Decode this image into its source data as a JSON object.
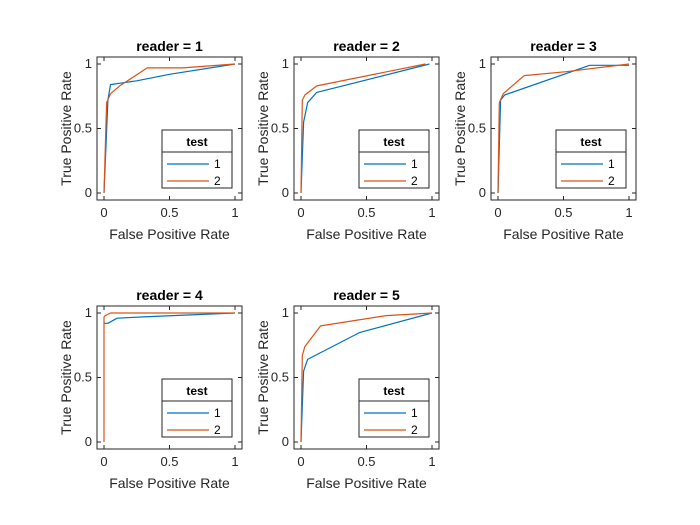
{
  "chart_data": [
    {
      "type": "line",
      "title": "reader = 1",
      "xlabel": "False Positive Rate",
      "ylabel": "True Positive Rate",
      "xlim": [
        0,
        1
      ],
      "ylim": [
        0,
        1
      ],
      "xticks": [
        "0",
        "0.5",
        "1"
      ],
      "yticks": [
        "0",
        "0.5",
        "1"
      ],
      "legend": {
        "title": "test",
        "placement": "bottom-right"
      },
      "series": [
        {
          "name": "1",
          "color": "#0072BD",
          "x": [
            0,
            0.03,
            0.05,
            0.25,
            0.5,
            1
          ],
          "y": [
            0,
            0.72,
            0.84,
            0.87,
            0.92,
            1
          ]
        },
        {
          "name": "2",
          "color": "#D95319",
          "x": [
            0,
            0.02,
            0.05,
            0.12,
            0.33,
            0.6,
            1
          ],
          "y": [
            0,
            0.7,
            0.77,
            0.83,
            0.97,
            0.97,
            1
          ]
        }
      ]
    },
    {
      "type": "line",
      "title": "reader = 2",
      "xlabel": "False Positive Rate",
      "ylabel": "True Positive Rate",
      "xlim": [
        0,
        1
      ],
      "ylim": [
        0,
        1
      ],
      "xticks": [
        "0",
        "0.5",
        "1"
      ],
      "yticks": [
        "0",
        "0.5",
        "1"
      ],
      "legend": {
        "title": "test",
        "placement": "bottom-right"
      },
      "series": [
        {
          "name": "1",
          "color": "#0072BD",
          "x": [
            0,
            0.02,
            0.05,
            0.12,
            0.98
          ],
          "y": [
            0,
            0.55,
            0.7,
            0.78,
            1
          ]
        },
        {
          "name": "2",
          "color": "#D95319",
          "x": [
            0,
            0.01,
            0.03,
            0.12,
            0.95
          ],
          "y": [
            0,
            0.72,
            0.76,
            0.83,
            1
          ]
        }
      ]
    },
    {
      "type": "line",
      "title": "reader = 3",
      "xlabel": "False Positive Rate",
      "ylabel": "True Positive Rate",
      "xlim": [
        0,
        1
      ],
      "ylim": [
        0,
        1
      ],
      "xticks": [
        "0",
        "0.5",
        "1"
      ],
      "yticks": [
        "0",
        "0.5",
        "1"
      ],
      "legend": {
        "title": "test",
        "placement": "bottom-right"
      },
      "series": [
        {
          "name": "1",
          "color": "#0072BD",
          "x": [
            0,
            0.02,
            0.05,
            0.7,
            1
          ],
          "y": [
            0,
            0.72,
            0.76,
            0.99,
            0.99
          ]
        },
        {
          "name": "2",
          "color": "#D95319",
          "x": [
            0,
            0.01,
            0.04,
            0.2,
            0.52,
            1
          ],
          "y": [
            0,
            0.7,
            0.77,
            0.91,
            0.94,
            1
          ]
        }
      ]
    },
    {
      "type": "line",
      "title": "reader = 4",
      "xlabel": "False Positive Rate",
      "ylabel": "True Positive Rate",
      "xlim": [
        0,
        1
      ],
      "ylim": [
        0,
        1
      ],
      "xticks": [
        "0",
        "0.5",
        "1"
      ],
      "yticks": [
        "0",
        "0.5",
        "1"
      ],
      "legend": {
        "title": "test",
        "placement": "bottom-right"
      },
      "series": [
        {
          "name": "1",
          "color": "#0072BD",
          "x": [
            0,
            0.03,
            0.1,
            0.3,
            1
          ],
          "y": [
            0.92,
            0.92,
            0.96,
            0.97,
            1
          ]
        },
        {
          "name": "2",
          "color": "#D95319",
          "x": [
            0,
            0,
            0.01,
            0.05,
            0.2,
            1
          ],
          "y": [
            0,
            0.97,
            0.98,
            1,
            1,
            1
          ]
        }
      ]
    },
    {
      "type": "line",
      "title": "reader = 5",
      "xlabel": "False Positive Rate",
      "ylabel": "True Positive Rate",
      "xlim": [
        0,
        1
      ],
      "ylim": [
        0,
        1
      ],
      "xticks": [
        "0",
        "0.5",
        "1"
      ],
      "yticks": [
        "0",
        "0.5",
        "1"
      ],
      "legend": {
        "title": "test",
        "placement": "bottom-right"
      },
      "series": [
        {
          "name": "1",
          "color": "#0072BD",
          "x": [
            0,
            0.02,
            0.05,
            0.45,
            1
          ],
          "y": [
            0,
            0.55,
            0.64,
            0.85,
            1
          ]
        },
        {
          "name": "2",
          "color": "#D95319",
          "x": [
            0,
            0.01,
            0.03,
            0.15,
            0.65,
            1
          ],
          "y": [
            0,
            0.67,
            0.74,
            0.9,
            0.98,
            1
          ]
        }
      ]
    }
  ]
}
